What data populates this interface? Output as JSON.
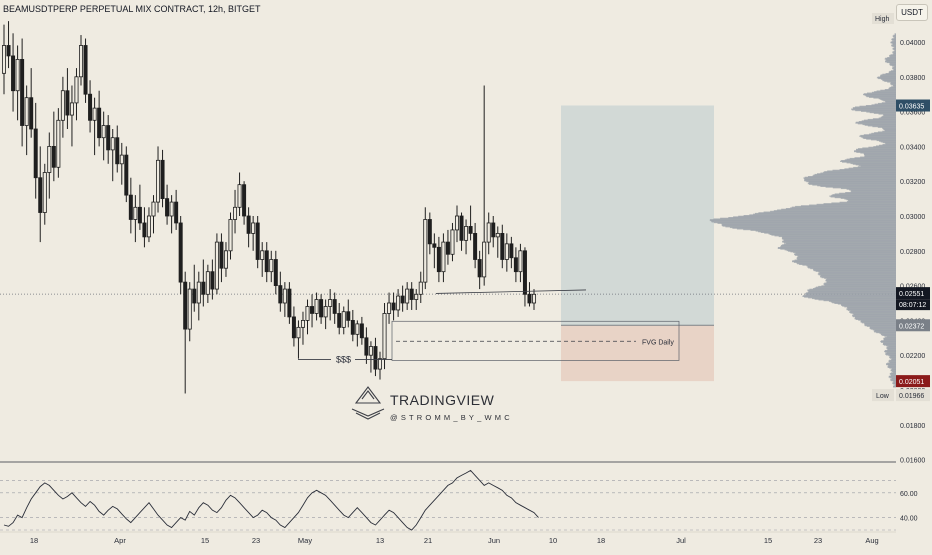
{
  "header": {
    "title": "BEAMUSDTPERP PERPETUAL MIX CONTRACT, 12h, BITGET",
    "currency": "USDT"
  },
  "colors": {
    "background": "#efebe1",
    "candle": "#1f1f1f",
    "target_zone": "#d2d9d6",
    "stop_zone": "#e8d3c6",
    "last_price_badge": "#131722",
    "target_badge": "#2e4e66",
    "low_badge": "#8b1a1a",
    "profile": "#9aa0a8"
  },
  "chart_data": [
    {
      "type": "candlestick",
      "title": "",
      "symbol": "BEAMUSDTPERP PERPETUAL MIX CONTRACT",
      "interval": "12h",
      "exchange": "BITGET",
      "ylim": [
        0.0158,
        0.042
      ],
      "y_ticks": [
        "0.04000",
        "0.03800",
        "0.03600",
        "0.03400",
        "0.03200",
        "0.03000",
        "0.02800",
        "0.02600",
        "0.02400",
        "0.02200",
        "0.02000",
        "0.01800",
        "0.01600"
      ],
      "x_ticks": [
        "18",
        "Apr",
        "15",
        "23",
        "May",
        "13",
        "21",
        "Jun",
        "10",
        "18",
        "Jul",
        "15",
        "23",
        "Aug"
      ],
      "grid": false,
      "price_labels": {
        "high_label": "High",
        "low_label": "Low",
        "target": "0.03635",
        "last_price": "0.02551",
        "countdown": "08:07:12",
        "entry": "0.02372",
        "stop": "0.02051",
        "low_value": "0.01966"
      },
      "candles": [
        [
          0.0382,
          0.041,
          0.037,
          0.0398
        ],
        [
          0.0398,
          0.0412,
          0.0385,
          0.0392
        ],
        [
          0.0392,
          0.0405,
          0.036,
          0.0372
        ],
        [
          0.0372,
          0.0398,
          0.0355,
          0.039
        ],
        [
          0.039,
          0.0402,
          0.034,
          0.0352
        ],
        [
          0.0352,
          0.0375,
          0.0335,
          0.0368
        ],
        [
          0.0368,
          0.0385,
          0.0345,
          0.035
        ],
        [
          0.035,
          0.0365,
          0.031,
          0.0322
        ],
        [
          0.0322,
          0.034,
          0.0285,
          0.0302
        ],
        [
          0.0302,
          0.033,
          0.0295,
          0.0325
        ],
        [
          0.0325,
          0.0348,
          0.031,
          0.034
        ],
        [
          0.034,
          0.036,
          0.032,
          0.0328
        ],
        [
          0.0328,
          0.0362,
          0.0322,
          0.0355
        ],
        [
          0.0355,
          0.038,
          0.0345,
          0.0372
        ],
        [
          0.0372,
          0.0385,
          0.035,
          0.0358
        ],
        [
          0.0358,
          0.0375,
          0.034,
          0.0365
        ],
        [
          0.0365,
          0.0385,
          0.0355,
          0.038
        ],
        [
          0.038,
          0.0404,
          0.0375,
          0.0398
        ],
        [
          0.0398,
          0.0402,
          0.0365,
          0.037
        ],
        [
          0.037,
          0.0378,
          0.0348,
          0.0355
        ],
        [
          0.0355,
          0.0368,
          0.0335,
          0.0362
        ],
        [
          0.0362,
          0.0372,
          0.034,
          0.0345
        ],
        [
          0.0345,
          0.036,
          0.0332,
          0.0352
        ],
        [
          0.0352,
          0.0358,
          0.033,
          0.0338
        ],
        [
          0.0338,
          0.035,
          0.032,
          0.0345
        ],
        [
          0.0345,
          0.0352,
          0.0325,
          0.033
        ],
        [
          0.033,
          0.0342,
          0.0318,
          0.0335
        ],
        [
          0.0335,
          0.034,
          0.0308,
          0.0312
        ],
        [
          0.0312,
          0.0322,
          0.029,
          0.0298
        ],
        [
          0.0298,
          0.0312,
          0.0285,
          0.0305
        ],
        [
          0.0305,
          0.0318,
          0.0292,
          0.0296
        ],
        [
          0.0296,
          0.0305,
          0.0282,
          0.0288
        ],
        [
          0.0288,
          0.0305,
          0.0285,
          0.03
        ],
        [
          0.03,
          0.0312,
          0.029,
          0.0308
        ],
        [
          0.0308,
          0.034,
          0.0302,
          0.0332
        ],
        [
          0.0332,
          0.0338,
          0.0305,
          0.031
        ],
        [
          0.031,
          0.0318,
          0.0295,
          0.03
        ],
        [
          0.03,
          0.0312,
          0.029,
          0.0308
        ],
        [
          0.0308,
          0.0315,
          0.0292,
          0.0296
        ],
        [
          0.0296,
          0.03,
          0.0255,
          0.0262
        ],
        [
          0.0262,
          0.0268,
          0.0198,
          0.0235
        ],
        [
          0.0235,
          0.0262,
          0.0228,
          0.0258
        ],
        [
          0.0258,
          0.0272,
          0.0245,
          0.025
        ],
        [
          0.025,
          0.0268,
          0.024,
          0.0262
        ],
        [
          0.0262,
          0.0275,
          0.0248,
          0.0255
        ],
        [
          0.0255,
          0.0272,
          0.025,
          0.0268
        ],
        [
          0.0268,
          0.0275,
          0.0252,
          0.0258
        ],
        [
          0.0258,
          0.029,
          0.0255,
          0.0285
        ],
        [
          0.0285,
          0.029,
          0.0262,
          0.027
        ],
        [
          0.027,
          0.0285,
          0.0265,
          0.028
        ],
        [
          0.028,
          0.0302,
          0.0275,
          0.0298
        ],
        [
          0.0298,
          0.0315,
          0.029,
          0.0305
        ],
        [
          0.0305,
          0.0325,
          0.03,
          0.0318
        ],
        [
          0.0318,
          0.032,
          0.0295,
          0.03
        ],
        [
          0.03,
          0.0305,
          0.0282,
          0.029
        ],
        [
          0.029,
          0.03,
          0.028,
          0.0296
        ],
        [
          0.0296,
          0.03,
          0.027,
          0.0275
        ],
        [
          0.0275,
          0.0285,
          0.0265,
          0.028
        ],
        [
          0.028,
          0.0285,
          0.0262,
          0.0268
        ],
        [
          0.0268,
          0.028,
          0.0262,
          0.0275
        ],
        [
          0.0275,
          0.028,
          0.0255,
          0.026
        ],
        [
          0.026,
          0.0268,
          0.0245,
          0.025
        ],
        [
          0.025,
          0.0262,
          0.0242,
          0.0258
        ],
        [
          0.0258,
          0.0262,
          0.0238,
          0.0242
        ],
        [
          0.0242,
          0.0248,
          0.0225,
          0.023
        ],
        [
          0.023,
          0.024,
          0.0218,
          0.0236
        ],
        [
          0.0236,
          0.0245,
          0.0226,
          0.024
        ],
        [
          0.024,
          0.0252,
          0.0232,
          0.0248
        ],
        [
          0.0248,
          0.0255,
          0.0236,
          0.0244
        ],
        [
          0.0244,
          0.0256,
          0.024,
          0.0252
        ],
        [
          0.0252,
          0.0255,
          0.0238,
          0.0242
        ],
        [
          0.0242,
          0.0252,
          0.0235,
          0.0248
        ],
        [
          0.0248,
          0.0258,
          0.024,
          0.0252
        ],
        [
          0.0252,
          0.0256,
          0.0238,
          0.0244
        ],
        [
          0.0244,
          0.025,
          0.0232,
          0.0236
        ],
        [
          0.0236,
          0.0248,
          0.0232,
          0.0245
        ],
        [
          0.0245,
          0.0252,
          0.0236,
          0.024
        ],
        [
          0.024,
          0.0246,
          0.0228,
          0.0232
        ],
        [
          0.0232,
          0.024,
          0.0225,
          0.0238
        ],
        [
          0.0238,
          0.0242,
          0.0226,
          0.023
        ],
        [
          0.023,
          0.0236,
          0.0215,
          0.022
        ],
        [
          0.022,
          0.0228,
          0.021,
          0.0225
        ],
        [
          0.0225,
          0.023,
          0.0208,
          0.0212
        ],
        [
          0.0212,
          0.0222,
          0.0206,
          0.0218
        ],
        [
          0.0218,
          0.025,
          0.0212,
          0.0244
        ],
        [
          0.0244,
          0.0256,
          0.0238,
          0.025
        ],
        [
          0.025,
          0.0256,
          0.024,
          0.0246
        ],
        [
          0.0246,
          0.0258,
          0.0242,
          0.0254
        ],
        [
          0.0254,
          0.026,
          0.0245,
          0.025
        ],
        [
          0.025,
          0.0262,
          0.0246,
          0.0258
        ],
        [
          0.0258,
          0.0262,
          0.0246,
          0.0252
        ],
        [
          0.0252,
          0.0258,
          0.0246,
          0.0255
        ],
        [
          0.0255,
          0.0268,
          0.025,
          0.0262
        ],
        [
          0.0262,
          0.0305,
          0.0258,
          0.0298
        ],
        [
          0.0298,
          0.0302,
          0.0278,
          0.0284
        ],
        [
          0.0284,
          0.029,
          0.027,
          0.0282
        ],
        [
          0.0282,
          0.0288,
          0.0262,
          0.0268
        ],
        [
          0.0268,
          0.029,
          0.0262,
          0.0285
        ],
        [
          0.0285,
          0.0292,
          0.0272,
          0.0278
        ],
        [
          0.0278,
          0.0296,
          0.0274,
          0.0292
        ],
        [
          0.0292,
          0.0306,
          0.0285,
          0.03
        ],
        [
          0.03,
          0.0302,
          0.028,
          0.0286
        ],
        [
          0.0286,
          0.0298,
          0.0278,
          0.0294
        ],
        [
          0.0294,
          0.0306,
          0.0286,
          0.029
        ],
        [
          0.029,
          0.0296,
          0.027,
          0.0275
        ],
        [
          0.0275,
          0.028,
          0.0258,
          0.0265
        ],
        [
          0.0265,
          0.0375,
          0.026,
          0.0285
        ],
        [
          0.0285,
          0.0302,
          0.0278,
          0.0296
        ],
        [
          0.0296,
          0.03,
          0.0282,
          0.0288
        ],
        [
          0.0288,
          0.0294,
          0.0276,
          0.029
        ],
        [
          0.029,
          0.0295,
          0.027,
          0.0275
        ],
        [
          0.0275,
          0.029,
          0.0268,
          0.0284
        ],
        [
          0.0284,
          0.0288,
          0.027,
          0.0276
        ],
        [
          0.0276,
          0.0282,
          0.0262,
          0.0268
        ],
        [
          0.0268,
          0.0284,
          0.0262,
          0.028
        ],
        [
          0.028,
          0.0282,
          0.0248,
          0.0255
        ],
        [
          0.0255,
          0.0262,
          0.0248,
          0.025
        ],
        [
          0.025,
          0.0258,
          0.0246,
          0.0255
        ]
      ]
    },
    {
      "type": "line",
      "title": "",
      "ylim": [
        30,
        80
      ],
      "levels": [
        "60.00",
        "40.00"
      ],
      "values": [
        34,
        33,
        36,
        42,
        40,
        48,
        55,
        60,
        65,
        68,
        66,
        62,
        58,
        55,
        57,
        60,
        56,
        52,
        49,
        53,
        50,
        45,
        42,
        46,
        49,
        47,
        43,
        39,
        36,
        40,
        44,
        48,
        52,
        47,
        42,
        38,
        34,
        32,
        36,
        40,
        38,
        45,
        42,
        48,
        52,
        50,
        46,
        44,
        48,
        54,
        58,
        56,
        52,
        48,
        44,
        40,
        42,
        46,
        44,
        40,
        38,
        34,
        32,
        36,
        40,
        44,
        50,
        56,
        60,
        62,
        60,
        58,
        54,
        50,
        46,
        42,
        40,
        44,
        48,
        44,
        40,
        36,
        34,
        38,
        42,
        46,
        44,
        40,
        36,
        32,
        30,
        34,
        40,
        46,
        50,
        54,
        58,
        62,
        66,
        68,
        72,
        74,
        76,
        78,
        74,
        70,
        66,
        68,
        66,
        64,
        62,
        58,
        56,
        52,
        50,
        48,
        46,
        44,
        40
      ]
    }
  ],
  "annotations": {
    "liquidity_label": "$$$",
    "fvg_label": "FVG Daily"
  },
  "watermark": {
    "brand": "TRADINGVIEW",
    "handle": "@STROMM_BY_WMC"
  }
}
